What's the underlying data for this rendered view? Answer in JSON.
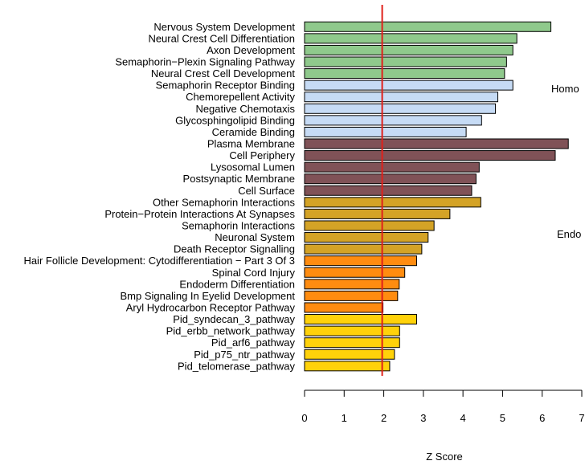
{
  "chart_data": {
    "type": "bar",
    "orientation": "horizontal",
    "xlabel": "Z Score",
    "xlim": [
      0,
      7
    ],
    "xticks": [
      0,
      1,
      2,
      3,
      4,
      5,
      6,
      7
    ],
    "reference_line": {
      "value": 1.96,
      "color": "#e0201b"
    },
    "grid": false,
    "side_labels": [
      "Homo",
      "Endo"
    ],
    "groups": [
      {
        "color": "#8fc98c",
        "items": [
          {
            "label": "Nervous System Development",
            "value": 6.22
          },
          {
            "label": "Neural Crest Cell Differentiation",
            "value": 5.36
          },
          {
            "label": "Axon Development",
            "value": 5.26
          },
          {
            "label": "Semaphorin−Plexin Signaling Pathway",
            "value": 5.1
          },
          {
            "label": "Neural Crest Cell Development",
            "value": 5.05
          }
        ]
      },
      {
        "color": "#c6dbf5",
        "items": [
          {
            "label": "Semaphorin Receptor Binding",
            "value": 5.26
          },
          {
            "label": "Chemorepellent Activity",
            "value": 4.88
          },
          {
            "label": "Negative Chemotaxis",
            "value": 4.82
          },
          {
            "label": "Glycosphingolipid Binding",
            "value": 4.47
          },
          {
            "label": "Ceramide Binding",
            "value": 4.08
          }
        ]
      },
      {
        "color": "#805257",
        "items": [
          {
            "label": "Plasma Membrane",
            "value": 6.66
          },
          {
            "label": "Cell Periphery",
            "value": 6.33
          },
          {
            "label": "Lysosomal Lumen",
            "value": 4.41
          },
          {
            "label": "Postsynaptic Membrane",
            "value": 4.33
          },
          {
            "label": "Cell Surface",
            "value": 4.22
          }
        ]
      },
      {
        "color": "#d4a326",
        "items": [
          {
            "label": "Other Semaphorin Interactions",
            "value": 4.45
          },
          {
            "label": "Protein−Protein Interactions At Synapses",
            "value": 3.67
          },
          {
            "label": "Semaphorin Interactions",
            "value": 3.27
          },
          {
            "label": "Neuronal System",
            "value": 3.12
          },
          {
            "label": "Death Receptor Signalling",
            "value": 2.96
          }
        ]
      },
      {
        "color": "#ff8c10",
        "items": [
          {
            "label": "Hair Follicle Development: Cytodifferentiation − Part 3 Of 3",
            "value": 2.83
          },
          {
            "label": "Spinal Cord Injury",
            "value": 2.53
          },
          {
            "label": "Endoderm Differentiation",
            "value": 2.39
          },
          {
            "label": "Bmp Signaling In Eyelid Development",
            "value": 2.35
          },
          {
            "label": "Aryl Hydrocarbon Receptor Pathway",
            "value": 1.98
          }
        ]
      },
      {
        "color": "#ffd20a",
        "items": [
          {
            "label": "Pid_syndecan_3_pathway",
            "value": 2.83
          },
          {
            "label": "Pid_erbb_network_pathway",
            "value": 2.4
          },
          {
            "label": "Pid_arf6_pathway",
            "value": 2.4
          },
          {
            "label": "Pid_p75_ntr_pathway",
            "value": 2.27
          },
          {
            "label": "Pid_telomerase_pathway",
            "value": 2.15
          }
        ]
      }
    ]
  }
}
